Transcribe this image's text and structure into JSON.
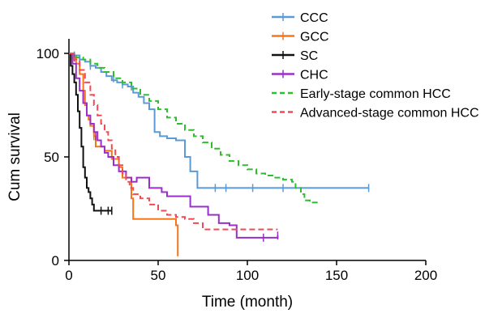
{
  "chart_data": {
    "type": "line",
    "title": "",
    "xlabel": "Time (month)",
    "ylabel": "Cum survival",
    "xlim": [
      0,
      200
    ],
    "ylim": [
      0,
      100
    ],
    "xticks": [
      "0",
      "50",
      "100",
      "150",
      "200"
    ],
    "yticks": [
      "0",
      "50",
      "100"
    ],
    "grid": false,
    "legend_position": "top-right",
    "step": true,
    "series": [
      {
        "name": "CCC",
        "color": "#5B9BD5",
        "dashed": false,
        "points": [
          [
            0,
            100
          ],
          [
            3,
            99
          ],
          [
            6,
            97
          ],
          [
            9,
            96
          ],
          [
            12,
            94
          ],
          [
            15,
            93
          ],
          [
            18,
            91
          ],
          [
            21,
            89
          ],
          [
            24,
            87
          ],
          [
            27,
            86
          ],
          [
            30,
            85
          ],
          [
            33,
            84
          ],
          [
            36,
            81
          ],
          [
            39,
            79
          ],
          [
            42,
            76
          ],
          [
            45,
            73
          ],
          [
            48,
            62
          ],
          [
            51,
            60
          ],
          [
            55,
            59
          ],
          [
            60,
            58
          ],
          [
            65,
            50
          ],
          [
            68,
            43
          ],
          [
            72,
            35
          ],
          [
            85,
            35
          ],
          [
            100,
            35
          ],
          [
            120,
            35
          ],
          [
            140,
            35
          ],
          [
            168,
            35
          ]
        ],
        "censors": [
          [
            3,
            99
          ],
          [
            12,
            94
          ],
          [
            25,
            88
          ],
          [
            30,
            85
          ],
          [
            35,
            84
          ],
          [
            82,
            35
          ],
          [
            88,
            35
          ],
          [
            103,
            35
          ],
          [
            120,
            35
          ],
          [
            168,
            35
          ]
        ]
      },
      {
        "name": "GCC",
        "color": "#F5761A",
        "dashed": false,
        "points": [
          [
            0,
            100
          ],
          [
            2,
            98
          ],
          [
            4,
            95
          ],
          [
            6,
            90
          ],
          [
            8,
            82
          ],
          [
            9,
            75
          ],
          [
            10,
            70
          ],
          [
            11,
            68
          ],
          [
            12,
            65
          ],
          [
            14,
            60
          ],
          [
            15,
            55
          ],
          [
            20,
            53
          ],
          [
            24,
            49
          ],
          [
            28,
            45
          ],
          [
            30,
            40
          ],
          [
            33,
            40
          ],
          [
            35,
            30
          ],
          [
            36,
            20
          ],
          [
            50,
            20
          ],
          [
            55,
            20
          ],
          [
            60,
            17
          ],
          [
            61,
            2
          ]
        ],
        "censors": [
          [
            14,
            60
          ],
          [
            28,
            45
          ]
        ]
      },
      {
        "name": "SC",
        "color": "#111111",
        "dashed": false,
        "points": [
          [
            0,
            100
          ],
          [
            1,
            94
          ],
          [
            2,
            90
          ],
          [
            3,
            86
          ],
          [
            4,
            80
          ],
          [
            5,
            72
          ],
          [
            6,
            64
          ],
          [
            7,
            55
          ],
          [
            8,
            45
          ],
          [
            9,
            40
          ],
          [
            10,
            35
          ],
          [
            11,
            33
          ],
          [
            12,
            30
          ],
          [
            13,
            27
          ],
          [
            14,
            24
          ],
          [
            16,
            24
          ],
          [
            18,
            24
          ],
          [
            20,
            24
          ],
          [
            22,
            24
          ],
          [
            24,
            24
          ]
        ],
        "censors": [
          [
            1,
            97
          ],
          [
            18,
            24
          ],
          [
            22,
            24
          ],
          [
            24,
            24
          ]
        ]
      },
      {
        "name": "CHC",
        "color": "#9B2FC9",
        "dashed": false,
        "points": [
          [
            0,
            100
          ],
          [
            2,
            95
          ],
          [
            4,
            88
          ],
          [
            6,
            82
          ],
          [
            8,
            76
          ],
          [
            10,
            70
          ],
          [
            12,
            66
          ],
          [
            14,
            62
          ],
          [
            16,
            58
          ],
          [
            18,
            55
          ],
          [
            20,
            52
          ],
          [
            22,
            50
          ],
          [
            25,
            46
          ],
          [
            28,
            43
          ],
          [
            32,
            40
          ],
          [
            35,
            38
          ],
          [
            38,
            40
          ],
          [
            42,
            40
          ],
          [
            45,
            35
          ],
          [
            52,
            33
          ],
          [
            55,
            31
          ],
          [
            62,
            31
          ],
          [
            68,
            26
          ],
          [
            75,
            26
          ],
          [
            78,
            22
          ],
          [
            84,
            18
          ],
          [
            90,
            17
          ],
          [
            94,
            11
          ],
          [
            108,
            11
          ],
          [
            117,
            12
          ]
        ],
        "censors": [
          [
            3,
            98
          ],
          [
            8,
            78
          ],
          [
            15,
            60
          ],
          [
            109,
            11
          ],
          [
            117,
            12
          ]
        ]
      },
      {
        "name": "Early-stage common HCC",
        "color": "#2DBE2D",
        "dashed": true,
        "points": [
          [
            0,
            100
          ],
          [
            4,
            98
          ],
          [
            8,
            97
          ],
          [
            12,
            95
          ],
          [
            16,
            93
          ],
          [
            20,
            91
          ],
          [
            25,
            88
          ],
          [
            30,
            86
          ],
          [
            35,
            83
          ],
          [
            40,
            80
          ],
          [
            45,
            77
          ],
          [
            50,
            73
          ],
          [
            55,
            69
          ],
          [
            60,
            66
          ],
          [
            65,
            63
          ],
          [
            70,
            60
          ],
          [
            75,
            57
          ],
          [
            80,
            54
          ],
          [
            85,
            51
          ],
          [
            90,
            48
          ],
          [
            95,
            46
          ],
          [
            100,
            44
          ],
          [
            105,
            42
          ],
          [
            110,
            41
          ],
          [
            115,
            40
          ],
          [
            120,
            39
          ],
          [
            125,
            38
          ],
          [
            127,
            35
          ],
          [
            130,
            32
          ],
          [
            132,
            29
          ],
          [
            135,
            28
          ],
          [
            140,
            28
          ]
        ],
        "censors": []
      },
      {
        "name": "Advanced-stage common HCC",
        "color": "#F04B55",
        "dashed": true,
        "points": [
          [
            0,
            100
          ],
          [
            3,
            97
          ],
          [
            6,
            92
          ],
          [
            9,
            86
          ],
          [
            12,
            80
          ],
          [
            14,
            75
          ],
          [
            16,
            70
          ],
          [
            18,
            66
          ],
          [
            20,
            62
          ],
          [
            22,
            58
          ],
          [
            24,
            54
          ],
          [
            26,
            50
          ],
          [
            28,
            46
          ],
          [
            30,
            42
          ],
          [
            32,
            38
          ],
          [
            34,
            35
          ],
          [
            36,
            32
          ],
          [
            40,
            30
          ],
          [
            45,
            27
          ],
          [
            50,
            24
          ],
          [
            55,
            22
          ],
          [
            60,
            21
          ],
          [
            65,
            20
          ],
          [
            70,
            18
          ],
          [
            75,
            15
          ],
          [
            85,
            15
          ],
          [
            100,
            15
          ],
          [
            110,
            15
          ],
          [
            117,
            15
          ]
        ],
        "censors": []
      }
    ]
  }
}
